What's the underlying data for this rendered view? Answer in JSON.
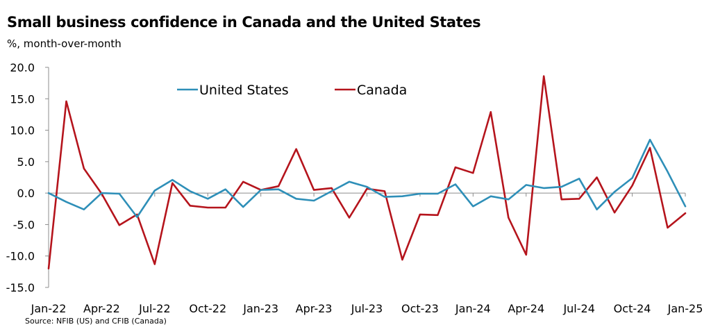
{
  "chart_data": {
    "type": "line",
    "title": "Small business confidence in Canada and the United States",
    "subtitle": "%, month-over-month",
    "source": "Source: NFIB (US) and CFIB (Canada)",
    "ylim": [
      -15,
      20
    ],
    "yticks": [
      "20.0",
      "15.0",
      "10.0",
      "5.0",
      "0.0",
      "-5.0",
      "-10.0",
      "-15.0"
    ],
    "ytick_values": [
      20,
      15,
      10,
      5,
      0,
      -5,
      -10,
      -15
    ],
    "x_labels": [
      "Jan-22",
      "Apr-22",
      "Jul-22",
      "Oct-22",
      "Jan-23",
      "Apr-23",
      "Jul-23",
      "Oct-23",
      "Jan-24",
      "Apr-24",
      "Jul-24",
      "Oct-24",
      "Jan-25"
    ],
    "legend_position": "top-center",
    "grid": false,
    "x": [
      "Jan-22",
      "Feb-22",
      "Mar-22",
      "Apr-22",
      "May-22",
      "Jun-22",
      "Jul-22",
      "Aug-22",
      "Sep-22",
      "Oct-22",
      "Nov-22",
      "Dec-22",
      "Jan-23",
      "Feb-23",
      "Mar-23",
      "Apr-23",
      "May-23",
      "Jun-23",
      "Jul-23",
      "Aug-23",
      "Sep-23",
      "Oct-23",
      "Nov-23",
      "Dec-23",
      "Jan-24",
      "Feb-24",
      "Mar-24",
      "Apr-24",
      "May-24",
      "Jun-24",
      "Jul-24",
      "Aug-24",
      "Sep-24",
      "Oct-24",
      "Nov-24",
      "Dec-24",
      "Jan-25"
    ],
    "series": [
      {
        "name": "United States",
        "color": "#2E8FB8",
        "values": [
          0.0,
          -1.4,
          -2.6,
          0.0,
          -0.1,
          -3.8,
          0.4,
          2.1,
          0.3,
          -0.9,
          0.6,
          -2.2,
          0.5,
          0.6,
          -0.9,
          -1.2,
          0.3,
          1.8,
          1.0,
          -0.6,
          -0.5,
          -0.1,
          -0.1,
          1.4,
          -2.1,
          -0.5,
          -1.0,
          1.3,
          0.8,
          1.0,
          2.3,
          -2.6,
          0.2,
          2.4,
          8.5,
          3.4,
          -2.1
        ]
      },
      {
        "name": "Canada",
        "color": "#B5141C",
        "values": [
          -12.0,
          14.6,
          3.9,
          -0.1,
          -5.1,
          -3.4,
          -11.3,
          1.6,
          -2.0,
          -2.3,
          -2.3,
          1.8,
          0.5,
          1.1,
          7.0,
          0.5,
          0.8,
          -3.9,
          0.7,
          0.3,
          -10.6,
          -3.4,
          -3.5,
          4.1,
          3.2,
          12.9,
          -3.9,
          -9.8,
          18.6,
          -1.0,
          -0.9,
          2.5,
          -3.1,
          1.2,
          7.2,
          -5.5,
          -3.2
        ]
      }
    ]
  }
}
